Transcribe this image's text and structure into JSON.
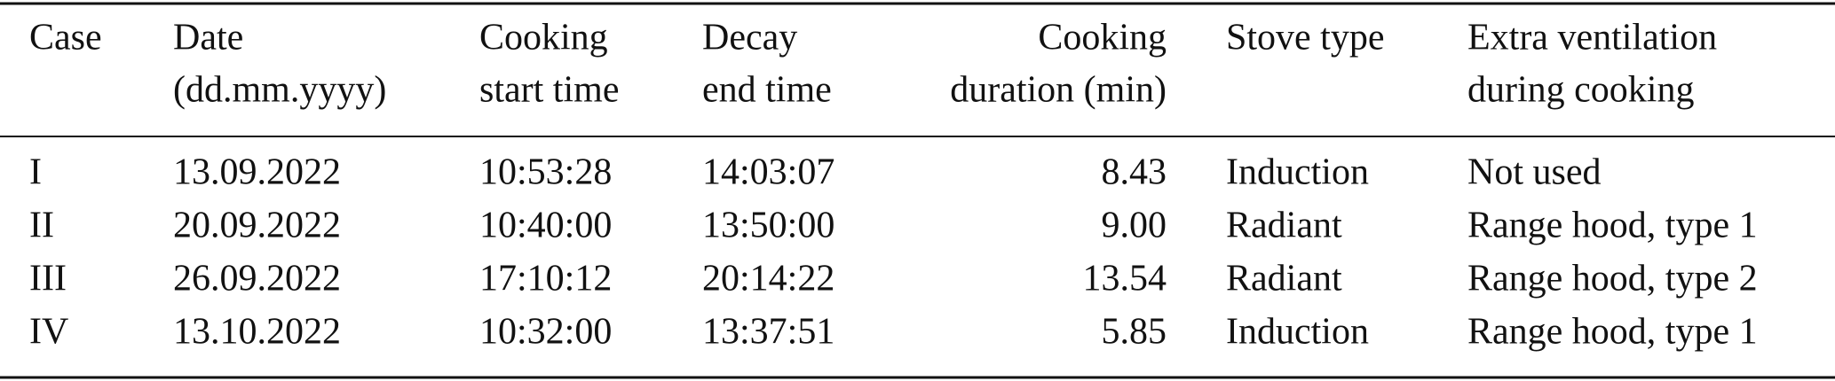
{
  "table": {
    "header": [
      [
        "Case"
      ],
      [
        "Date",
        "(dd.mm.yyyy)"
      ],
      [
        "Cooking",
        "start time"
      ],
      [
        "Decay",
        "end time"
      ],
      [
        "Cooking",
        "duration (min)"
      ],
      [
        "Stove type"
      ],
      [
        "Extra ventilation",
        "during cooking"
      ]
    ],
    "rows": [
      [
        "I",
        "13.09.2022",
        "10:53:28",
        "14:03:07",
        "8.43",
        "Induction",
        "Not used"
      ],
      [
        "II",
        "20.09.2022",
        "10:40:00",
        "13:50:00",
        "9.00",
        "Radiant",
        "Range hood, type 1"
      ],
      [
        "III",
        "26.09.2022",
        "17:10:12",
        "20:14:22",
        "13.54",
        "Radiant",
        "Range hood, type 2"
      ],
      [
        "IV",
        "13.10.2022",
        "10:32:00",
        "13:37:51",
        "5.85",
        "Induction",
        "Range hood, type 1"
      ]
    ]
  }
}
